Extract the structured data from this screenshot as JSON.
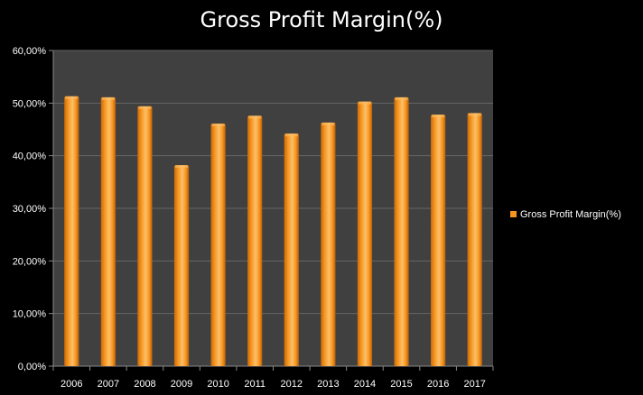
{
  "chart_data": {
    "type": "bar",
    "title": "Gross Profit Margin(%)",
    "xlabel": "",
    "ylabel": "",
    "categories": [
      "2006",
      "2007",
      "2008",
      "2009",
      "2010",
      "2011",
      "2012",
      "2013",
      "2014",
      "2015",
      "2016",
      "2017"
    ],
    "series": [
      {
        "name": "Gross Profit Margin(%)",
        "values": [
          51.3,
          51.1,
          49.4,
          38.2,
          46.1,
          47.6,
          44.2,
          46.3,
          50.3,
          51.1,
          47.8,
          48.1
        ]
      }
    ],
    "ylim": [
      0,
      60
    ],
    "yticks": [
      0,
      10,
      20,
      30,
      40,
      50,
      60
    ],
    "ytick_labels": [
      "0,00%",
      "10,00%",
      "20,00%",
      "30,00%",
      "40,00%",
      "50,00%",
      "60,00%"
    ],
    "grid": true,
    "legend": "right",
    "colors": {
      "background": "#000000",
      "plot_background": "#404040",
      "bar": "#f7941d",
      "bar_highlight": "#fcc06a",
      "bar_shadow": "#c86a0a",
      "grid": "#666666",
      "axis": "#888888",
      "text": "#ffffff"
    }
  }
}
